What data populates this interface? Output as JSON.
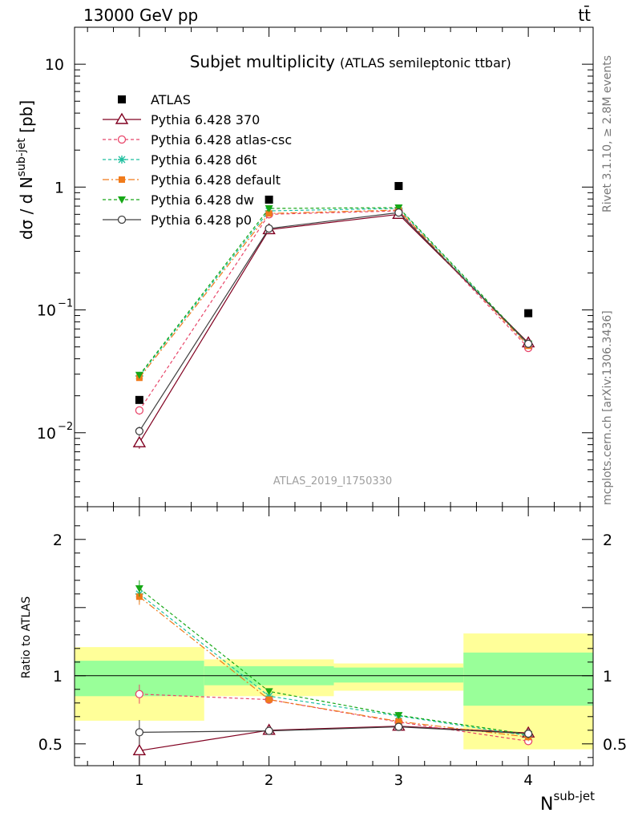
{
  "header": {
    "energy": "13000 GeV pp",
    "process": "tt̄"
  },
  "title": {
    "main": "Subjet multiplicity",
    "sub": "(ATLAS semileptonic ttbar)"
  },
  "side": {
    "rivet": "Rivet 3.1.10, ≥ 2.8M events",
    "mcplots": "mcplots.cern.ch [arXiv:1306.3436]"
  },
  "watermark": "ATLAS_2019_I1750330",
  "chart_data": [
    {
      "type": "line",
      "name": "main",
      "ylabel": "dσ / d N^{sub-jet} [pb]",
      "yscale": "log",
      "ylim": [
        0.0025,
        20
      ],
      "xlim": [
        0.5,
        4.5
      ],
      "y_ticks": [
        {
          "value": 0.01,
          "base": "10",
          "exp": "−2"
        },
        {
          "value": 0.1,
          "base": "10",
          "exp": "−1"
        },
        {
          "value": 1,
          "base": "1",
          "exp": ""
        },
        {
          "value": 10,
          "base": "10",
          "exp": ""
        }
      ],
      "x": [
        1,
        2,
        3,
        4
      ],
      "data": {
        "name": "ATLAS",
        "values": [
          0.0185,
          0.79,
          1.02,
          0.094
        ]
      },
      "series": [
        {
          "name": "Pythia 6.428 370",
          "color": "#800020",
          "dash": "",
          "marker": "triangle-open",
          "values": [
            0.0083,
            0.45,
            0.6,
            0.054
          ],
          "err": [
            0.0009,
            0.01,
            0.01,
            0.002
          ]
        },
        {
          "name": "Pythia 6.428 atlas-csc",
          "color": "#e8466a",
          "dash": "4,3",
          "marker": "circle-open",
          "values": [
            0.0152,
            0.6,
            0.64,
            0.049
          ],
          "err": [
            0.0012,
            0.01,
            0.01,
            0.002
          ]
        },
        {
          "name": "Pythia 6.428 d6t",
          "color": "#1fbf9f",
          "dash": "4,3",
          "marker": "star",
          "values": [
            0.029,
            0.64,
            0.67,
            0.052
          ],
          "err": [
            0.0015,
            0.01,
            0.01,
            0.002
          ]
        },
        {
          "name": "Pythia 6.428 default",
          "color": "#f07b1b",
          "dash": "8,3,2,3",
          "marker": "square",
          "values": [
            0.028,
            0.61,
            0.65,
            0.051
          ],
          "err": [
            0.0015,
            0.01,
            0.01,
            0.002
          ]
        },
        {
          "name": "Pythia 6.428 dw",
          "color": "#17a817",
          "dash": "4,3",
          "marker": "triangle-down",
          "values": [
            0.0295,
            0.67,
            0.68,
            0.053
          ],
          "err": [
            0.0015,
            0.01,
            0.01,
            0.002
          ]
        },
        {
          "name": "Pythia 6.428 p0",
          "color": "#404040",
          "dash": "",
          "marker": "circle-open",
          "values": [
            0.0103,
            0.46,
            0.62,
            0.053
          ],
          "err": [
            0.0009,
            0.01,
            0.01,
            0.002
          ]
        }
      ]
    },
    {
      "type": "line",
      "name": "ratio",
      "ylabel": "Ratio to ATLAS",
      "xlabel": "N^{sub-jet}",
      "ylim": [
        0.34,
        2.24
      ],
      "xlim": [
        0.5,
        4.5
      ],
      "y_ticks": [
        0.5,
        1,
        2
      ],
      "x_ticks": [
        1,
        2,
        3,
        4
      ],
      "bands": [
        {
          "x0": 0.5,
          "x1": 1.5,
          "inner": [
            0.85,
            1.11
          ],
          "outer": [
            0.67,
            1.21
          ]
        },
        {
          "x0": 1.5,
          "x1": 2.5,
          "inner": [
            0.93,
            1.07
          ],
          "outer": [
            0.85,
            1.12
          ]
        },
        {
          "x0": 2.5,
          "x1": 3.5,
          "inner": [
            0.95,
            1.06
          ],
          "outer": [
            0.89,
            1.09
          ]
        },
        {
          "x0": 3.5,
          "x1": 4.5,
          "inner": [
            0.78,
            1.17
          ],
          "outer": [
            0.46,
            1.31
          ]
        }
      ],
      "series": [
        {
          "name": "Pythia 6.428 370",
          "values": [
            0.45,
            0.6,
            0.63,
            0.58
          ],
          "err": [
            0.1,
            0.012,
            0.012,
            0.03
          ]
        },
        {
          "name": "Pythia 6.428 atlas-csc",
          "values": [
            0.865,
            0.825,
            0.66,
            0.52
          ],
          "err": [
            0.07,
            0.012,
            0.012,
            0.03
          ]
        },
        {
          "name": "Pythia 6.428 d6t",
          "values": [
            1.6,
            0.85,
            0.705,
            0.56
          ],
          "err": [
            0.06,
            0.012,
            0.012,
            0.03
          ]
        },
        {
          "name": "Pythia 6.428 default",
          "values": [
            1.58,
            0.825,
            0.665,
            0.55
          ],
          "err": [
            0.06,
            0.012,
            0.012,
            0.03
          ]
        },
        {
          "name": "Pythia 6.428 dw",
          "values": [
            1.64,
            0.885,
            0.71,
            0.57
          ],
          "err": [
            0.06,
            0.012,
            0.012,
            0.03
          ]
        },
        {
          "name": "Pythia 6.428 p0",
          "values": [
            0.585,
            0.595,
            0.625,
            0.575
          ],
          "err": [
            0.09,
            0.012,
            0.012,
            0.03
          ]
        }
      ]
    }
  ]
}
